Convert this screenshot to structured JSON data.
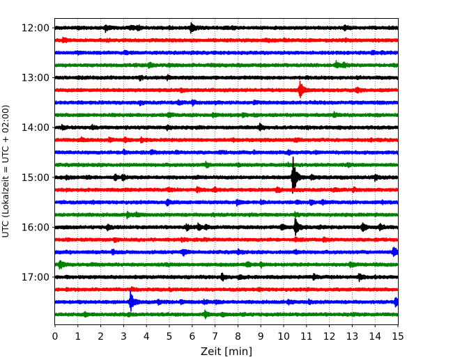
{
  "chart_data": {
    "type": "line",
    "title": "",
    "xlabel": "Zeit  [min]",
    "ylabel": "UTC (Lokalzeit = UTC + 02:00)",
    "xlim": [
      0,
      15
    ],
    "x_ticks": [
      0,
      1,
      2,
      3,
      4,
      5,
      6,
      7,
      8,
      9,
      10,
      11,
      12,
      13,
      14,
      15
    ],
    "x_tick_labels": [
      "0",
      "1",
      "2",
      "3",
      "4",
      "5",
      "6",
      "7",
      "8",
      "9",
      "10",
      "11",
      "12",
      "13",
      "14",
      "15"
    ],
    "y_tick_labels": [
      "12:00",
      "13:00",
      "14:00",
      "15:00",
      "16:00",
      "17:00"
    ],
    "trace_interval_minutes": 15,
    "grid": "vertical dotted at each minute",
    "colors": [
      "#000000",
      "#ff0000",
      "#0000ff",
      "#008000"
    ],
    "traces": [
      {
        "time": "12:00",
        "color": "#000000",
        "events": [
          [
            1.0,
            0.12
          ],
          [
            2.2,
            0.5
          ],
          [
            3.3,
            0.35
          ],
          [
            3.6,
            0.4
          ],
          [
            5.0,
            0.15
          ],
          [
            5.95,
            1.0
          ],
          [
            7.5,
            0.2
          ],
          [
            7.75,
            0.22
          ],
          [
            12.65,
            0.45
          ],
          [
            14.6,
            0.1
          ]
        ]
      },
      {
        "time": "12:15",
        "color": "#ff0000",
        "events": [
          [
            0.35,
            0.35
          ],
          [
            2.3,
            0.12
          ],
          [
            5.1,
            0.12
          ],
          [
            9.2,
            0.3
          ],
          [
            10.0,
            0.15
          ],
          [
            12.7,
            0.15
          ]
        ]
      },
      {
        "time": "12:30",
        "color": "#0000ff",
        "events": [
          [
            1.0,
            0.12
          ],
          [
            3.05,
            0.25
          ],
          [
            6.0,
            0.1
          ],
          [
            13.85,
            0.32
          ],
          [
            14.3,
            0.12
          ]
        ]
      },
      {
        "time": "12:45",
        "color": "#008000",
        "events": [
          [
            3.5,
            0.1
          ],
          [
            4.1,
            0.45
          ],
          [
            5.0,
            0.2
          ],
          [
            6.8,
            0.12
          ],
          [
            8.0,
            0.15
          ],
          [
            9.0,
            0.1
          ],
          [
            12.3,
            0.5
          ],
          [
            12.6,
            0.4
          ],
          [
            14.8,
            0.1
          ]
        ]
      },
      {
        "time": "13:00",
        "color": "#000000",
        "events": [
          [
            1.0,
            0.1
          ],
          [
            3.7,
            0.3
          ],
          [
            4.9,
            0.35
          ],
          [
            7.0,
            0.1
          ],
          [
            11.0,
            0.1
          ],
          [
            13.2,
            0.1
          ]
        ]
      },
      {
        "time": "13:15",
        "color": "#ff0000",
        "events": [
          [
            1.0,
            0.1
          ],
          [
            5.5,
            0.3
          ],
          [
            10.7,
            1.7
          ],
          [
            13.2,
            0.4
          ],
          [
            14.2,
            0.1
          ]
        ]
      },
      {
        "time": "13:30",
        "color": "#0000ff",
        "events": [
          [
            1.0,
            0.1
          ],
          [
            3.7,
            0.25
          ],
          [
            5.4,
            0.3
          ],
          [
            6.0,
            0.35
          ],
          [
            7.0,
            0.15
          ],
          [
            8.7,
            0.2
          ],
          [
            11.3,
            0.12
          ],
          [
            13.0,
            0.12
          ],
          [
            14.1,
            0.15
          ]
        ]
      },
      {
        "time": "13:45",
        "color": "#008000",
        "events": [
          [
            1.0,
            0.1
          ],
          [
            2.5,
            0.15
          ],
          [
            4.95,
            0.35
          ],
          [
            6.9,
            0.25
          ],
          [
            8.2,
            0.3
          ],
          [
            8.7,
            0.2
          ],
          [
            12.2,
            0.4
          ],
          [
            14.0,
            0.12
          ]
        ]
      },
      {
        "time": "14:00",
        "color": "#000000",
        "events": [
          [
            0.3,
            0.25
          ],
          [
            1.6,
            0.3
          ],
          [
            3.1,
            0.1
          ],
          [
            4.9,
            0.35
          ],
          [
            6.2,
            0.1
          ],
          [
            8.95,
            0.55
          ],
          [
            11.0,
            0.15
          ],
          [
            12.4,
            0.12
          ]
        ]
      },
      {
        "time": "14:15",
        "color": "#ff0000",
        "events": [
          [
            1.15,
            0.3
          ],
          [
            2.35,
            0.35
          ],
          [
            3.05,
            0.35
          ],
          [
            3.75,
            0.3
          ],
          [
            7.8,
            0.15
          ],
          [
            9.0,
            0.12
          ],
          [
            10.5,
            0.35
          ],
          [
            13.8,
            0.12
          ]
        ]
      },
      {
        "time": "14:30",
        "color": "#0000ff",
        "events": [
          [
            3.0,
            0.35
          ],
          [
            4.2,
            0.35
          ],
          [
            5.3,
            0.2
          ],
          [
            7.2,
            0.25
          ],
          [
            8.7,
            0.12
          ],
          [
            10.2,
            0.35
          ],
          [
            11.4,
            0.15
          ],
          [
            14.5,
            0.12
          ]
        ]
      },
      {
        "time": "14:45",
        "color": "#008000",
        "events": [
          [
            1.0,
            0.1
          ],
          [
            6.6,
            0.4
          ],
          [
            8.0,
            0.15
          ],
          [
            10.2,
            0.2
          ],
          [
            12.8,
            0.2
          ]
        ]
      },
      {
        "time": "15:00",
        "color": "#000000",
        "events": [
          [
            0.5,
            0.25
          ],
          [
            1.4,
            0.25
          ],
          [
            2.6,
            0.5
          ],
          [
            2.95,
            0.45
          ],
          [
            5.0,
            0.1
          ],
          [
            6.2,
            0.12
          ],
          [
            10.4,
            3.8
          ],
          [
            11.2,
            0.4
          ],
          [
            12.5,
            0.12
          ],
          [
            14.0,
            0.5
          ]
        ]
      },
      {
        "time": "15:15",
        "color": "#ff0000",
        "events": [
          [
            0.5,
            0.12
          ],
          [
            3.1,
            0.12
          ],
          [
            4.95,
            0.25
          ],
          [
            6.2,
            0.4
          ],
          [
            6.95,
            0.4
          ],
          [
            9.7,
            0.45
          ],
          [
            10.5,
            0.12
          ],
          [
            12.2,
            0.3
          ],
          [
            13.05,
            0.3
          ]
        ]
      },
      {
        "time": "15:30",
        "color": "#0000ff",
        "events": [
          [
            0.3,
            0.12
          ],
          [
            1.6,
            0.15
          ],
          [
            4.9,
            0.5
          ],
          [
            7.95,
            0.5
          ],
          [
            9.0,
            0.3
          ],
          [
            10.55,
            0.2
          ],
          [
            11.15,
            0.4
          ],
          [
            11.7,
            0.3
          ],
          [
            14.3,
            0.15
          ]
        ]
      },
      {
        "time": "15:45",
        "color": "#008000",
        "events": [
          [
            1.0,
            0.1
          ],
          [
            3.15,
            0.45
          ],
          [
            3.55,
            0.35
          ],
          [
            6.9,
            0.12
          ],
          [
            8.5,
            0.12
          ],
          [
            10.5,
            0.3
          ],
          [
            14.0,
            0.12
          ]
        ]
      },
      {
        "time": "16:00",
        "color": "#000000",
        "events": [
          [
            0.5,
            0.1
          ],
          [
            2.3,
            0.45
          ],
          [
            5.75,
            0.45
          ],
          [
            6.25,
            0.5
          ],
          [
            6.6,
            0.3
          ],
          [
            9.9,
            0.45
          ],
          [
            10.5,
            1.8
          ],
          [
            11.5,
            0.3
          ],
          [
            13.45,
            0.9
          ],
          [
            14.2,
            0.5
          ]
        ]
      },
      {
        "time": "16:15",
        "color": "#ff0000",
        "events": [
          [
            0.5,
            0.1
          ],
          [
            2.6,
            0.3
          ],
          [
            5.55,
            0.25
          ],
          [
            6.5,
            0.1
          ],
          [
            10.5,
            0.3
          ],
          [
            11.75,
            0.3
          ],
          [
            14.0,
            0.12
          ]
        ]
      },
      {
        "time": "16:30",
        "color": "#0000ff",
        "events": [
          [
            0.5,
            0.1
          ],
          [
            2.5,
            0.4
          ],
          [
            5.6,
            0.55
          ],
          [
            8.0,
            0.4
          ],
          [
            10.5,
            0.3
          ],
          [
            14.8,
            0.9
          ]
        ]
      },
      {
        "time": "16:45",
        "color": "#008000",
        "events": [
          [
            0.2,
            0.9
          ],
          [
            1.6,
            0.15
          ],
          [
            4.9,
            0.15
          ],
          [
            8.4,
            0.5
          ],
          [
            9.0,
            0.45
          ],
          [
            12.9,
            0.45
          ],
          [
            14.0,
            0.12
          ]
        ]
      },
      {
        "time": "17:00",
        "color": "#000000",
        "events": [
          [
            0.5,
            0.1
          ],
          [
            7.3,
            0.6
          ],
          [
            8.05,
            0.4
          ],
          [
            11.3,
            0.4
          ],
          [
            13.3,
            0.55
          ],
          [
            14.0,
            0.12
          ]
        ]
      },
      {
        "time": "17:15",
        "color": "#ff0000",
        "events": [
          [
            0.5,
            0.1
          ],
          [
            3.35,
            0.25
          ],
          [
            5.0,
            0.12
          ],
          [
            8.9,
            0.15
          ],
          [
            11.0,
            0.12
          ]
        ]
      },
      {
        "time": "17:30",
        "color": "#0000ff",
        "events": [
          [
            1.0,
            0.12
          ],
          [
            3.3,
            1.9
          ],
          [
            4.5,
            0.35
          ],
          [
            5.5,
            0.3
          ],
          [
            6.5,
            0.3
          ],
          [
            7.05,
            0.3
          ],
          [
            10.2,
            0.35
          ],
          [
            11.1,
            0.3
          ],
          [
            14.9,
            1.0
          ]
        ]
      },
      {
        "time": "17:45",
        "color": "#008000",
        "events": [
          [
            1.3,
            0.35
          ],
          [
            3.2,
            0.25
          ],
          [
            6.55,
            0.6
          ],
          [
            7.3,
            0.2
          ],
          [
            8.2,
            0.2
          ],
          [
            13.0,
            0.15
          ]
        ]
      }
    ]
  }
}
